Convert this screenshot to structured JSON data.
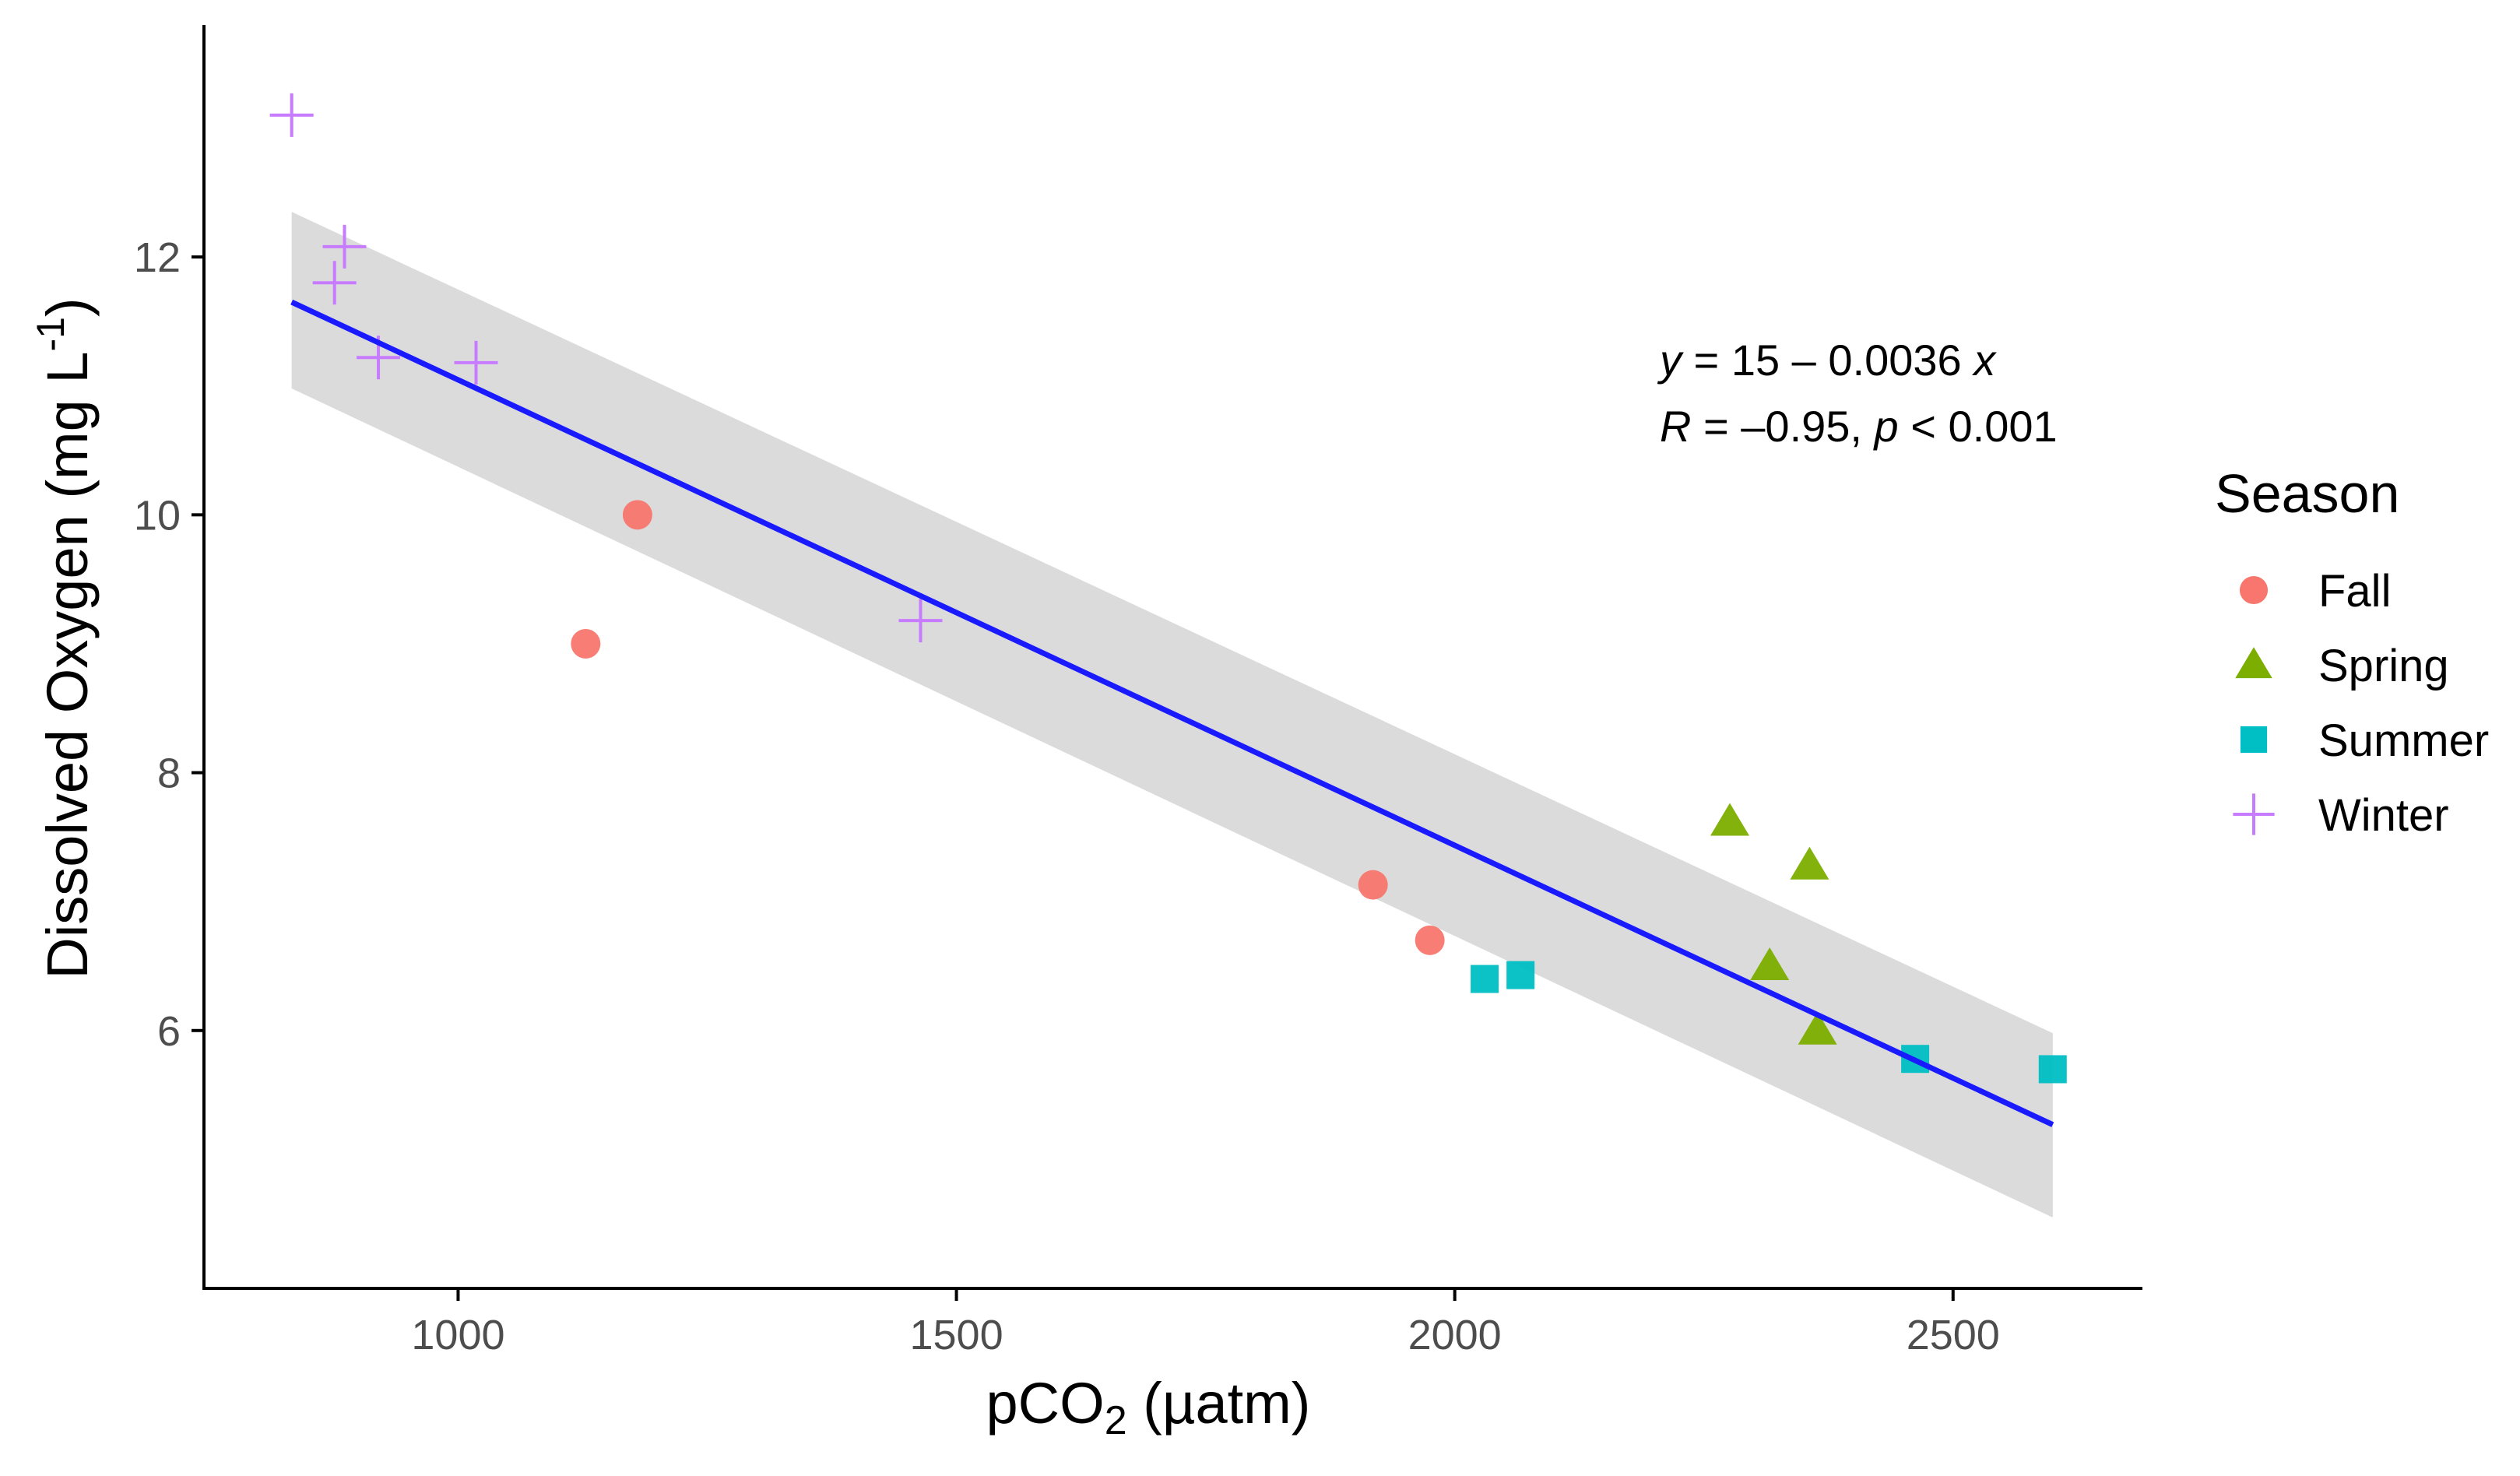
{
  "chart_data": {
    "type": "scatter",
    "title": "",
    "xlabel_main": "pCO",
    "xlabel_sub": "2",
    "xlabel_unit": "(µatm)",
    "ylabel_main": "Dissolved Oxygen",
    "ylabel_unit_open": "(mg L",
    "ylabel_unit_sup": "-1",
    "ylabel_unit_close": ")",
    "xlim": [
      745,
      2690
    ],
    "ylim": [
      4.0,
      13.8
    ],
    "x_ticks": [
      1000,
      1500,
      2000,
      2500
    ],
    "x_tick_labels": [
      "1000",
      "1500",
      "2000",
      "2500"
    ],
    "y_ticks": [
      6,
      8,
      10,
      12
    ],
    "y_tick_labels": [
      "6",
      "8",
      "10",
      "12"
    ],
    "grid": false,
    "legend_position": "right",
    "legend_title": "Season",
    "colors": {
      "Fall": "#F8766D",
      "Spring": "#7CAE00",
      "Summer": "#00BFC4",
      "Winter": "#C77CFF",
      "fit_line": "#1a1aff",
      "ci_band": "#d9d9d9"
    },
    "series": [
      {
        "name": "Fall",
        "marker": "circle",
        "points": [
          [
            1128,
            9.0
          ],
          [
            1180,
            10.0
          ],
          [
            1918,
            7.13
          ],
          [
            1975,
            6.7
          ]
        ]
      },
      {
        "name": "Spring",
        "marker": "triangle",
        "points": [
          [
            2276,
            7.62
          ],
          [
            2356,
            7.28
          ],
          [
            2316,
            6.5
          ],
          [
            2364,
            6.0
          ]
        ]
      },
      {
        "name": "Summer",
        "marker": "square",
        "points": [
          [
            2030,
            6.4
          ],
          [
            2066,
            6.43
          ],
          [
            2462,
            5.78
          ],
          [
            2600,
            5.7
          ]
        ]
      },
      {
        "name": "Winter",
        "marker": "cross",
        "points": [
          [
            833,
            13.1
          ],
          [
            886,
            12.08
          ],
          [
            876,
            11.8
          ],
          [
            920,
            11.22
          ],
          [
            1018,
            11.18
          ],
          [
            1464,
            9.18
          ]
        ]
      }
    ],
    "fit": {
      "x_range": [
        833,
        2600
      ],
      "y_start": 11.65,
      "y_end": 5.27,
      "ci_start": [
        10.98,
        12.35
      ],
      "ci_end": [
        4.55,
        5.98
      ]
    },
    "annotation": {
      "line1": {
        "y": "y",
        "a": " = 15 – 0.0036 ",
        "x": "x"
      },
      "line2": {
        "R": "R",
        "a": " = –0.95, ",
        "p": "p",
        "b": " < 0.001"
      }
    }
  }
}
